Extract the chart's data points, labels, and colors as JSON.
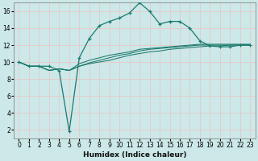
{
  "title": "",
  "xlabel": "Humidex (Indice chaleur)",
  "background_color": "#cce8e8",
  "grid_color": "#e8c8c8",
  "line_color": "#1a7a6e",
  "xlim": [
    -0.5,
    23.5
  ],
  "ylim": [
    1,
    17
  ],
  "xticks": [
    0,
    1,
    2,
    3,
    4,
    5,
    6,
    7,
    8,
    9,
    10,
    11,
    12,
    13,
    14,
    15,
    16,
    17,
    18,
    19,
    20,
    21,
    22,
    23
  ],
  "yticks": [
    2,
    4,
    6,
    8,
    10,
    12,
    14,
    16
  ],
  "series": [
    [
      10.0,
      9.5,
      9.5,
      9.5,
      9.0,
      1.8,
      10.5,
      12.8,
      14.3,
      14.8,
      15.2,
      15.8,
      17.0,
      16.0,
      14.5,
      14.8,
      14.8,
      14.0,
      12.5,
      11.9,
      11.8,
      11.8,
      12.0,
      12.0
    ],
    [
      10.0,
      9.5,
      9.5,
      9.0,
      9.2,
      9.0,
      9.5,
      9.8,
      10.0,
      10.2,
      10.5,
      10.8,
      11.0,
      11.2,
      11.3,
      11.5,
      11.6,
      11.7,
      11.8,
      11.9,
      11.9,
      12.0,
      12.0,
      12.0
    ],
    [
      10.0,
      9.5,
      9.5,
      9.0,
      9.2,
      9.0,
      9.5,
      9.9,
      10.2,
      10.5,
      10.8,
      11.0,
      11.3,
      11.5,
      11.6,
      11.7,
      11.8,
      11.9,
      12.0,
      12.0,
      12.0,
      12.0,
      12.0,
      12.0
    ],
    [
      10.0,
      9.5,
      9.5,
      9.0,
      9.2,
      9.0,
      9.8,
      10.2,
      10.5,
      10.8,
      11.0,
      11.2,
      11.5,
      11.6,
      11.7,
      11.8,
      11.9,
      12.0,
      12.1,
      12.1,
      12.1,
      12.1,
      12.1,
      12.1
    ]
  ],
  "marker_series": 0,
  "xlabel_fontsize": 6.5,
  "xlabel_bold": true,
  "tick_labelsize": 5.5,
  "spine_color": "#888888"
}
